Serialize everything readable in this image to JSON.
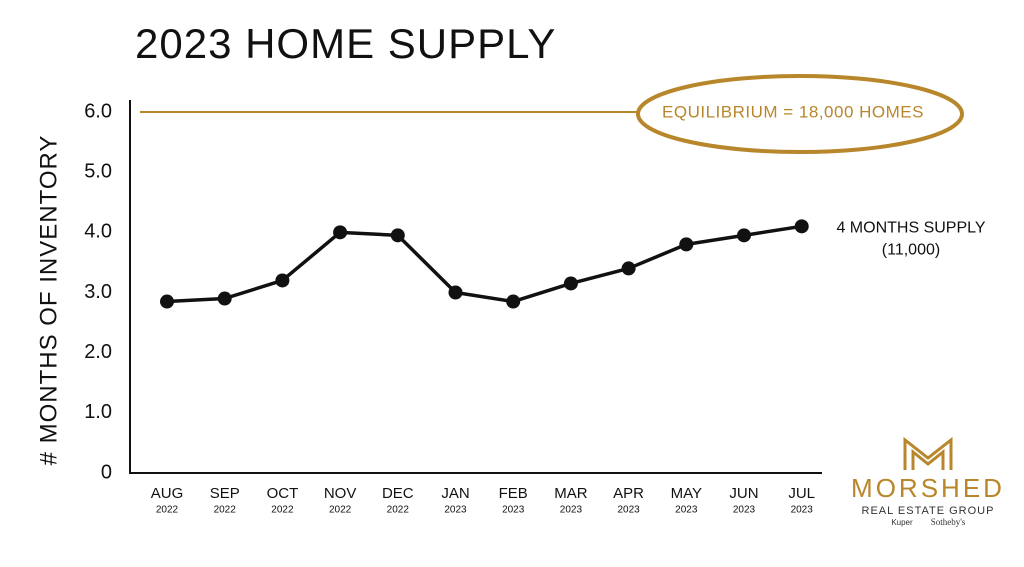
{
  "chart_data": {
    "type": "line",
    "title": "2023 HOME SUPPLY",
    "y_label": "# MONTHS OF INVENTORY",
    "categories": [
      "AUG",
      "SEP",
      "OCT",
      "NOV",
      "DEC",
      "JAN",
      "FEB",
      "MAR",
      "APR",
      "MAY",
      "JUN",
      "JUL"
    ],
    "category_years": [
      "2022",
      "2022",
      "2022",
      "2022",
      "2022",
      "2023",
      "2023",
      "2023",
      "2023",
      "2023",
      "2023",
      "2023"
    ],
    "series": [
      {
        "name": "Months of inventory",
        "color": "#111111",
        "values": [
          2.85,
          2.9,
          3.2,
          4.0,
          3.95,
          3.0,
          2.85,
          3.15,
          3.4,
          3.8,
          3.95,
          4.1
        ]
      }
    ],
    "ylim": [
      0,
      6
    ],
    "yticks": [
      0,
      {
        "value": 1,
        "label": "1.0"
      },
      {
        "value": 2,
        "label": "2.0"
      },
      {
        "value": 3,
        "label": "3.0"
      },
      {
        "value": 4,
        "label": "4.0"
      },
      {
        "value": 5,
        "label": "5.0"
      },
      {
        "value": 6,
        "label": "6.0"
      }
    ],
    "reference_line": {
      "value": 6,
      "label": "EQUILIBRIUM = 18,000 HOMES",
      "color": "#b8862b"
    },
    "end_annotation": [
      "4 MONTHS SUPPLY",
      "(11,000)"
    ]
  },
  "logo": {
    "name": "MORSHED",
    "tagline": "REAL ESTATE GROUP",
    "partner_1": "Kuper",
    "partner_2": "Sotheby's"
  }
}
